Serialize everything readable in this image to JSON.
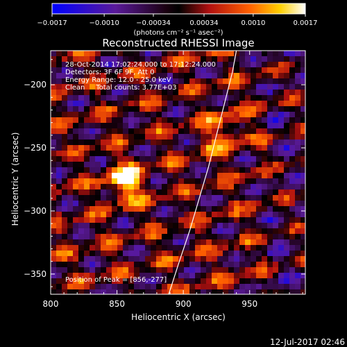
{
  "chart_data": {
    "type": "heatmap",
    "title": "Reconstructed RHESSI Image",
    "xlabel": "Heliocentric X (arcsec)",
    "ylabel": "Heliocentric Y (arcsec)",
    "xlim": [
      800,
      992
    ],
    "ylim": [
      -366,
      -173
    ],
    "x_ticks": [
      800,
      850,
      900,
      950
    ],
    "x_tick_labels": [
      "800",
      "850",
      "900",
      "950"
    ],
    "y_ticks": [
      -200,
      -250,
      -300,
      -350
    ],
    "y_tick_labels": [
      "−200",
      "−250",
      "−300",
      "−350"
    ],
    "colorbar": {
      "range": [
        -0.0017,
        0.0017
      ],
      "ticks": [
        -0.0017,
        -0.001,
        -0.00034,
        0.00034,
        0.001,
        0.0017
      ],
      "tick_labels": [
        "−0.0017",
        "−0.0010",
        "−0.00034",
        "0.00034",
        "0.0010",
        "0.0017"
      ],
      "units_label": "(photons cm⁻² s⁻¹ asec⁻²)",
      "colormap": "blue-purple-red-orange-yellow-white"
    },
    "annotations": [
      "28-Oct-2014 17:02:24.000 to 17:12:24.000",
      "Detectors: 3F 6F 9F, Att 0",
      "Energy Range: 12.0 - 25.0 keV",
      "Clean     Total counts: 3.77E+03"
    ],
    "peak_label": "Position of Peak = [856,-277]",
    "peak": [
      856,
      -277
    ],
    "limb_curve": [
      [
        889,
        -366
      ],
      [
        897,
        -340
      ],
      [
        905,
        -315
      ],
      [
        912,
        -290
      ],
      [
        919,
        -265
      ],
      [
        925,
        -240
      ],
      [
        931,
        -215
      ],
      [
        937,
        -190
      ],
      [
        940,
        -173
      ]
    ]
  },
  "footer_date": "12-Jul-2017 02:46"
}
